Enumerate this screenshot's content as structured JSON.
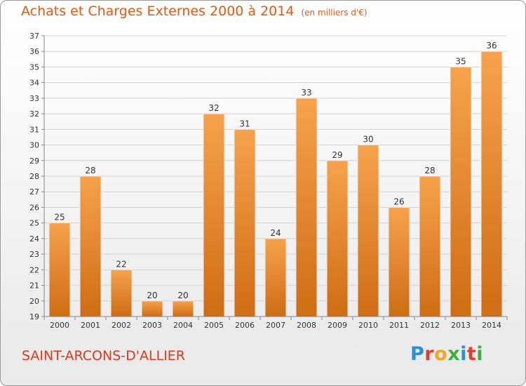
{
  "header": {
    "title": "Achats et Charges Externes 2000 à 2014",
    "subtitle": "(en milliers d'€)"
  },
  "footer": {
    "commune": "SAINT-ARCONS-D'ALLIER",
    "logo_letters": [
      "P",
      "r",
      "o",
      "x",
      "i",
      "t",
      "i"
    ]
  },
  "colors": {
    "bar_light": "#f7a24c",
    "bar_dark": "#cf6c14",
    "title": "#e05a10",
    "commune": "#d73a1c"
  },
  "chart_data": {
    "type": "bar",
    "title": "Achats et Charges Externes 2000 à 2014",
    "subtitle": "(en milliers d'€)",
    "xlabel": "",
    "ylabel": "",
    "categories": [
      "2000",
      "2001",
      "2002",
      "2003",
      "2004",
      "2005",
      "2006",
      "2007",
      "2008",
      "2009",
      "2010",
      "2011",
      "2012",
      "2013",
      "2014"
    ],
    "values": [
      25,
      28,
      22,
      20,
      20,
      32,
      31,
      24,
      33,
      29,
      30,
      26,
      28,
      35,
      36
    ],
    "ylim": [
      19,
      37
    ],
    "yticks": [
      19,
      20,
      21,
      22,
      23,
      24,
      25,
      26,
      27,
      28,
      29,
      30,
      31,
      32,
      33,
      34,
      35,
      36,
      37
    ],
    "grid": true,
    "legend": "none"
  }
}
